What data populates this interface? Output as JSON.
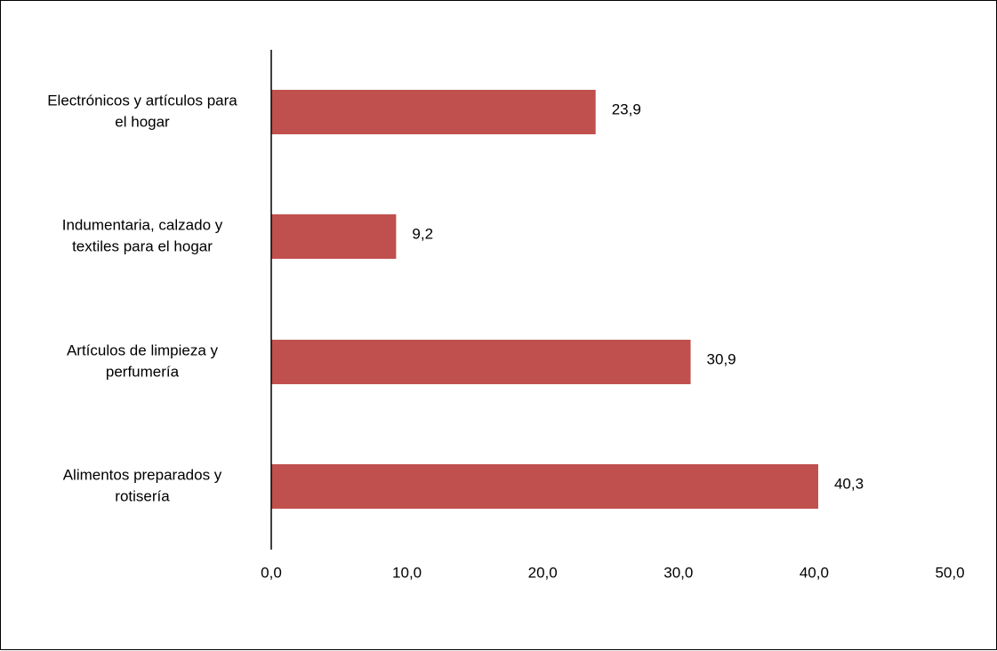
{
  "chart_data": {
    "type": "bar",
    "orientation": "horizontal",
    "categories": [
      [
        "Electrónicos y artículos para",
        "el hogar"
      ],
      [
        "Indumentaria, calzado y",
        "textiles para el hogar"
      ],
      [
        "Artículos de limpieza y",
        "perfumería"
      ],
      [
        "Alimentos preparados y",
        "rotisería"
      ]
    ],
    "values": [
      23.9,
      9.2,
      30.9,
      40.3
    ],
    "value_labels": [
      "23,9",
      "9,2",
      "30,9",
      "40,3"
    ],
    "xlim": [
      0,
      50
    ],
    "x_ticks": [
      0,
      10,
      20,
      30,
      40,
      50
    ],
    "x_tick_labels": [
      "0,0",
      "10,0",
      "20,0",
      "30,0",
      "40,0",
      "50,0"
    ],
    "title": "",
    "xlabel": "",
    "ylabel": "",
    "grid": false,
    "legend": "none",
    "bar_color": "#c0504d"
  }
}
